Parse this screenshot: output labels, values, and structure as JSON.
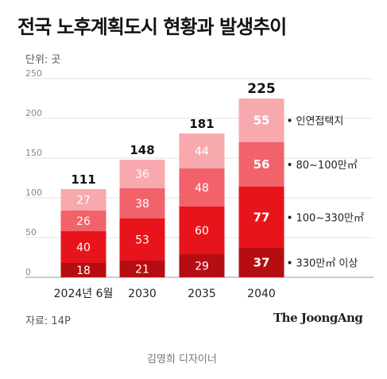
{
  "title": "전국 노후계획도시 현황과 발생추이",
  "unit": "단위: 곳",
  "source": "자료: 14P",
  "brand": "The JoongAng",
  "designer": "김영희 디자이너",
  "chart_data": {
    "type": "bar",
    "stacked": true,
    "title": "전국 노후계획도시 현황과 발생추이",
    "xlabel": "",
    "ylabel": "",
    "ylim": [
      0,
      250
    ],
    "yticks": [
      0,
      50,
      100,
      150,
      200,
      250
    ],
    "grid": true,
    "categories": [
      "2024년 6월",
      "2030",
      "2035",
      "2040"
    ],
    "totals": [
      111,
      148,
      181,
      225
    ],
    "series": [
      {
        "name": "330만㎡ 이상",
        "values": [
          18,
          21,
          29,
          37
        ],
        "color": "#b50d12"
      },
      {
        "name": "100~330만㎡",
        "values": [
          40,
          53,
          60,
          77
        ],
        "color": "#e8141b"
      },
      {
        "name": "80~100만㎡",
        "values": [
          26,
          38,
          48,
          56
        ],
        "color": "#f1626b"
      },
      {
        "name": "인연접택지",
        "values": [
          27,
          36,
          44,
          55
        ],
        "color": "#f8a9ae"
      }
    ]
  }
}
